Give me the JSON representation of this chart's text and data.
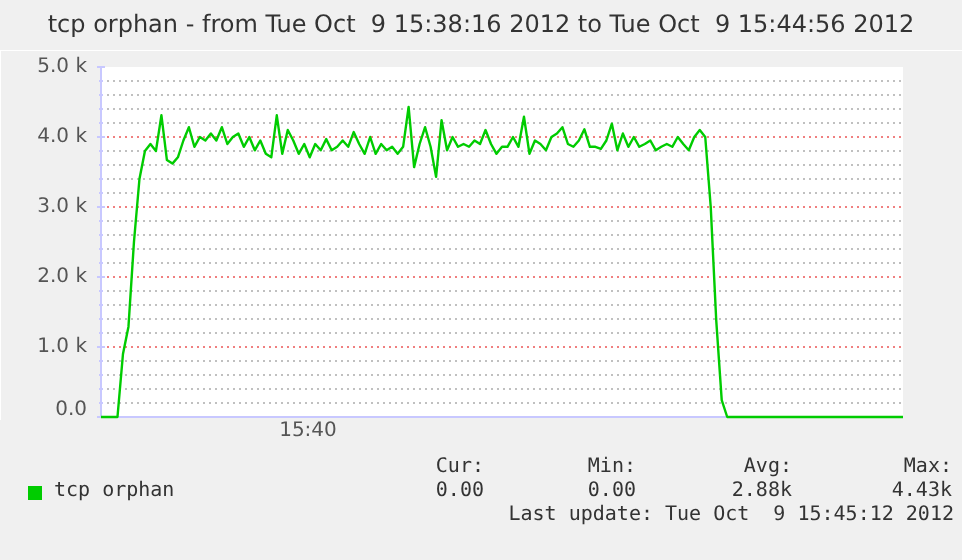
{
  "chart_data": {
    "type": "line",
    "title": "tcp orphan - from Tue Oct  9 15:38:16 2012 to Tue Oct  9 15:44:56 2012",
    "categories": [
      null,
      null,
      null,
      null,
      null,
      null,
      null,
      null,
      null,
      null,
      null,
      null,
      null,
      null,
      null,
      null,
      null,
      null,
      null,
      null,
      null,
      null,
      null,
      null,
      null,
      null,
      null,
      null,
      null,
      null,
      null,
      null,
      null,
      null,
      null,
      null,
      null,
      null,
      null,
      null,
      null,
      null,
      null,
      null,
      null,
      null,
      null,
      null,
      null,
      null,
      null,
      null,
      null,
      null,
      null,
      null,
      null,
      null,
      null,
      null,
      null,
      null,
      null,
      null,
      null,
      null,
      null,
      null,
      null,
      null,
      null,
      null,
      null,
      null,
      null,
      null,
      null,
      null,
      null,
      null,
      null,
      null,
      null,
      null,
      null,
      null,
      null,
      null,
      null,
      null,
      null,
      null,
      null,
      null,
      null,
      null,
      null,
      null,
      null,
      null,
      null,
      null,
      null,
      null,
      null,
      null,
      null,
      null,
      null,
      null,
      null,
      null,
      null,
      null,
      null,
      null,
      null,
      null,
      null,
      null,
      null,
      null,
      null,
      null,
      null,
      null,
      null,
      null,
      null,
      null,
      null,
      null,
      null,
      null,
      null,
      null,
      null,
      null,
      null,
      null,
      null,
      null,
      null,
      null,
      null,
      null,
      null
    ],
    "series": [
      {
        "name": "tcp orphan",
        "color": "#00cc00",
        "values": [
          0,
          0,
          0,
          0,
          900,
          1290,
          2500,
          3400,
          3800,
          3900,
          3800,
          4310,
          3670,
          3620,
          3710,
          3950,
          4140,
          3860,
          4000,
          3950,
          4050,
          3950,
          4140,
          3900,
          4000,
          4050,
          3860,
          4000,
          3810,
          3950,
          3760,
          3710,
          4310,
          3760,
          4100,
          3950,
          3760,
          3900,
          3710,
          3900,
          3810,
          3970,
          3810,
          3860,
          3950,
          3860,
          4070,
          3900,
          3760,
          4000,
          3760,
          3900,
          3810,
          3860,
          3760,
          3860,
          4430,
          3570,
          3900,
          4140,
          3860,
          3430,
          4240,
          3810,
          4000,
          3860,
          3900,
          3860,
          3950,
          3900,
          4100,
          3900,
          3760,
          3860,
          3860,
          4000,
          3860,
          4290,
          3760,
          3950,
          3900,
          3810,
          4000,
          4050,
          4140,
          3900,
          3860,
          3950,
          4110,
          3860,
          3860,
          3830,
          3950,
          4190,
          3810,
          4050,
          3860,
          4000,
          3860,
          3900,
          3950,
          3810,
          3860,
          3900,
          3860,
          4000,
          3900,
          3810,
          4000,
          4100,
          4000,
          3000,
          1380,
          240,
          0,
          0,
          0,
          0,
          0,
          0,
          0,
          0,
          0,
          0,
          0,
          0,
          0,
          0,
          0,
          0,
          0,
          0,
          0,
          0,
          0,
          0,
          0,
          0,
          0,
          0,
          0,
          0,
          0,
          0,
          0,
          0,
          0
        ]
      }
    ],
    "ylim": [
      0,
      5000
    ],
    "yticks": [
      {
        "value": 0,
        "label": "0.0"
      },
      {
        "value": 200,
        "label": null
      },
      {
        "value": 400,
        "label": null
      },
      {
        "value": 600,
        "label": null
      },
      {
        "value": 800,
        "label": null
      },
      {
        "value": 1000,
        "label": "1.0 k"
      },
      {
        "value": 1200,
        "label": null
      },
      {
        "value": 1400,
        "label": null
      },
      {
        "value": 1600,
        "label": null
      },
      {
        "value": 1800,
        "label": null
      },
      {
        "value": 2000,
        "label": "2.0 k"
      },
      {
        "value": 2200,
        "label": null
      },
      {
        "value": 2400,
        "label": null
      },
      {
        "value": 2600,
        "label": null
      },
      {
        "value": 2800,
        "label": null
      },
      {
        "value": 3000,
        "label": "3.0 k"
      },
      {
        "value": 3200,
        "label": null
      },
      {
        "value": 3400,
        "label": null
      },
      {
        "value": 3600,
        "label": null
      },
      {
        "value": 3800,
        "label": null
      },
      {
        "value": 4000,
        "label": "4.0 k"
      },
      {
        "value": 4200,
        "label": null
      },
      {
        "value": 4400,
        "label": null
      },
      {
        "value": 4600,
        "label": null
      },
      {
        "value": 4800,
        "label": null
      },
      {
        "value": 5000,
        "label": "5.0 k"
      }
    ],
    "grid": "y",
    "legend": "bottom left",
    "annotations": [
      "15:40",
      "Cur:",
      "0.00",
      "Min:",
      "0.00",
      "Avg:",
      "2.88k",
      "Max:",
      "4.43k",
      "Last update: Tue Oct  9 15:45:12 2012"
    ]
  }
}
